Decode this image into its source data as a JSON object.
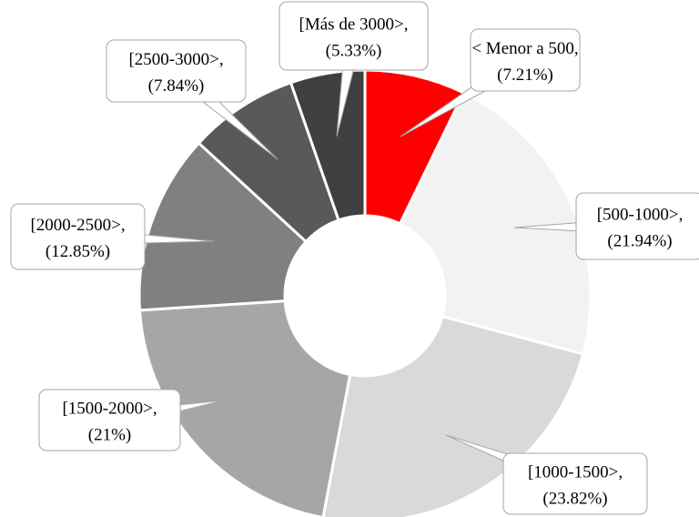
{
  "chart_data": {
    "type": "donut",
    "categories": [
      "< Menor a 500",
      "[500-1000>",
      "[1000-1500>",
      "[1500-2000>",
      "[2000-2500>",
      "[2500-3000>",
      "[Más de 3000>"
    ],
    "values": [
      7.21,
      21.94,
      23.82,
      21,
      12.85,
      7.84,
      5.33
    ],
    "value_labels": [
      "(7.21%)",
      "(21.94%)",
      "(23.82%)",
      "(21%)",
      "(12.85%)",
      "(7.84%)",
      "(5.33%)"
    ],
    "label_separator": ",",
    "colors": [
      "#ff0000",
      "#f2f2f2",
      "#d9d9d9",
      "#a6a6a6",
      "#808080",
      "#595959",
      "#404040"
    ]
  }
}
